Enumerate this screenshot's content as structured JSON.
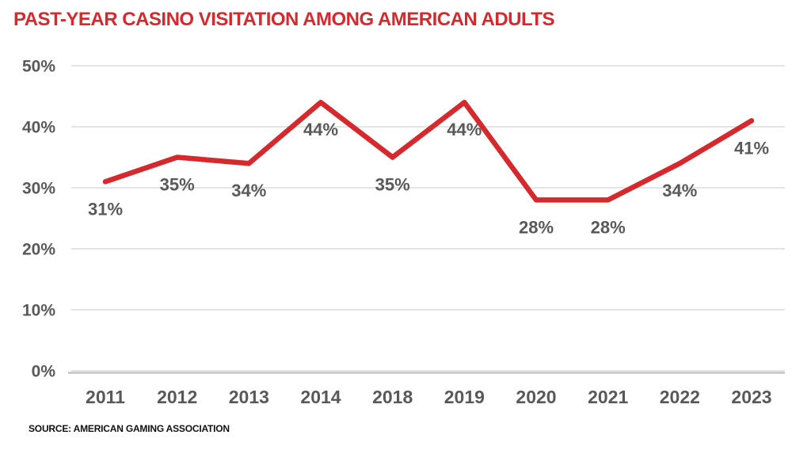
{
  "page": {
    "title": "PAST-YEAR CASINO VISITATION AMONG AMERICAN ADULTS",
    "source": "SOURCE: AMERICAN GAMING ASSOCIATION"
  },
  "colors": {
    "accent_red": "#d6292e",
    "label_gray": "#595959",
    "gridline": "#dcdcdc",
    "axis_line": "#c4c4c4",
    "source_black": "#111111",
    "background": "#ffffff"
  },
  "chart_data": {
    "type": "line",
    "title": "PAST-YEAR CASINO VISITATION AMONG AMERICAN ADULTS",
    "categories": [
      "2011",
      "2012",
      "2013",
      "2014",
      "2018",
      "2019",
      "2020",
      "2021",
      "2022",
      "2023"
    ],
    "values": [
      31,
      35,
      34,
      44,
      35,
      44,
      28,
      28,
      34,
      41
    ],
    "data_labels": [
      "31%",
      "35%",
      "34%",
      "44%",
      "35%",
      "44%",
      "28%",
      "28%",
      "34%",
      "41%"
    ],
    "xlabel": "",
    "ylabel": "",
    "ylim": [
      0,
      50
    ],
    "yticks": [
      0,
      10,
      20,
      30,
      40,
      50
    ],
    "ytick_labels": [
      "0%",
      "10%",
      "20%",
      "30%",
      "40%",
      "50%"
    ],
    "grid": "horizontal-only",
    "legend": "none",
    "line_color": "#d6292e",
    "source": "SOURCE: AMERICAN GAMING ASSOCIATION"
  }
}
